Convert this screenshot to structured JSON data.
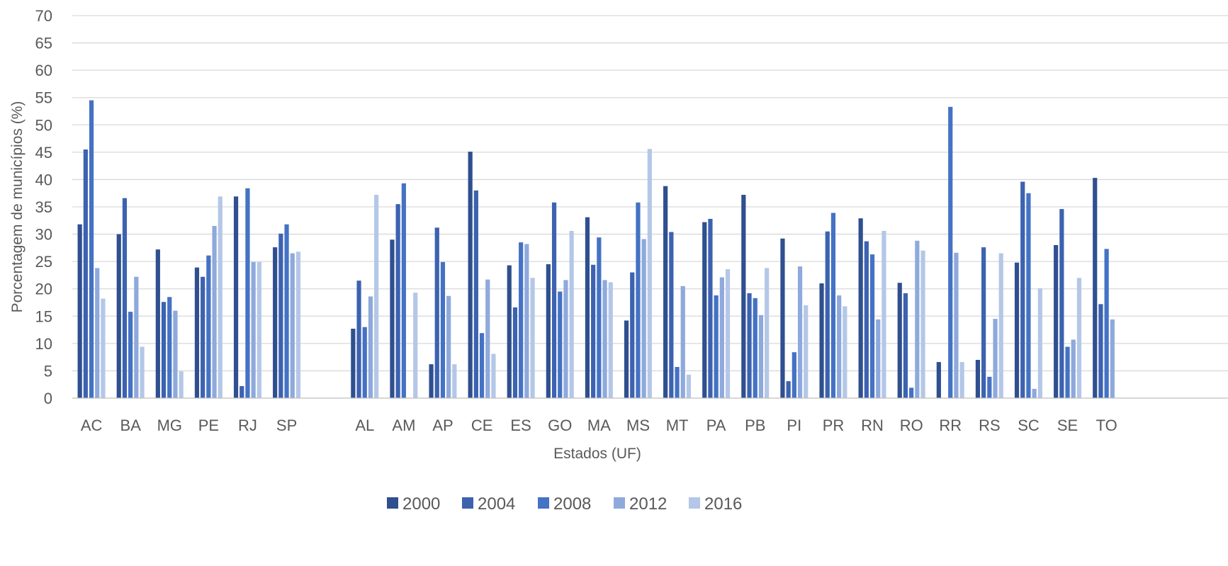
{
  "chart_data": {
    "type": "bar",
    "title": "",
    "xlabel": "Estados (UF)",
    "ylabel": "Porcentagem de municípios (%)",
    "ylim": [
      0,
      70
    ],
    "ytick_step": 5,
    "yticks": [
      "0",
      "5",
      "10",
      "15",
      "20",
      "25",
      "30",
      "35",
      "40",
      "45",
      "50",
      "55",
      "60",
      "65",
      "70"
    ],
    "grid": true,
    "legend_position": "bottom",
    "categories": [
      "AC",
      "BA",
      "MG",
      "PE",
      "RJ",
      "SP",
      "",
      "AL",
      "AM",
      "AP",
      "CE",
      "ES",
      "GO",
      "MA",
      "MS",
      "MT",
      "PA",
      "PB",
      "PI",
      "PR",
      "RN",
      "RO",
      "RR",
      "RS",
      "SC",
      "SE",
      "TO"
    ],
    "series": [
      {
        "name": "2000",
        "color": "#2f4f8f",
        "values": [
          31.8,
          30.0,
          27.2,
          23.9,
          36.9,
          27.6,
          null,
          12.7,
          29.0,
          6.2,
          45.1,
          24.3,
          24.5,
          33.1,
          14.2,
          38.8,
          32.2,
          37.2,
          29.2,
          21.0,
          32.9,
          21.1,
          6.6,
          7.0,
          24.8,
          28.0,
          40.3
        ]
      },
      {
        "name": "2004",
        "color": "#3c62b0",
        "values": [
          45.5,
          36.6,
          17.6,
          22.2,
          2.2,
          30.1,
          null,
          21.5,
          35.5,
          31.2,
          38.0,
          16.6,
          35.8,
          24.4,
          23.0,
          30.4,
          32.8,
          19.2,
          3.1,
          30.5,
          28.7,
          19.2,
          null,
          27.6,
          39.6,
          34.6,
          17.2
        ]
      },
      {
        "name": "2008",
        "color": "#4472c4",
        "values": [
          54.5,
          15.8,
          18.5,
          26.1,
          38.4,
          31.8,
          null,
          13.0,
          39.3,
          24.9,
          11.9,
          28.5,
          19.5,
          29.4,
          35.8,
          5.7,
          18.8,
          18.3,
          8.4,
          33.9,
          26.3,
          1.9,
          53.3,
          3.9,
          37.5,
          9.4,
          27.3
        ]
      },
      {
        "name": "2012",
        "color": "#8ea9db",
        "values": [
          23.8,
          22.2,
          16.0,
          31.5,
          24.9,
          26.5,
          null,
          18.6,
          null,
          18.7,
          21.7,
          28.2,
          21.6,
          21.6,
          29.1,
          20.5,
          22.1,
          15.2,
          24.1,
          18.8,
          14.4,
          28.8,
          26.6,
          14.5,
          1.7,
          10.7,
          14.4
        ]
      },
      {
        "name": "2016",
        "color": "#b4c7e7",
        "values": [
          18.2,
          9.4,
          4.9,
          36.9,
          24.9,
          26.8,
          null,
          37.2,
          19.3,
          6.2,
          8.1,
          22.0,
          30.6,
          21.2,
          45.6,
          4.3,
          23.6,
          23.8,
          17.0,
          16.8,
          30.6,
          27.0,
          6.6,
          26.5,
          20.1,
          22.0,
          null
        ]
      }
    ]
  }
}
